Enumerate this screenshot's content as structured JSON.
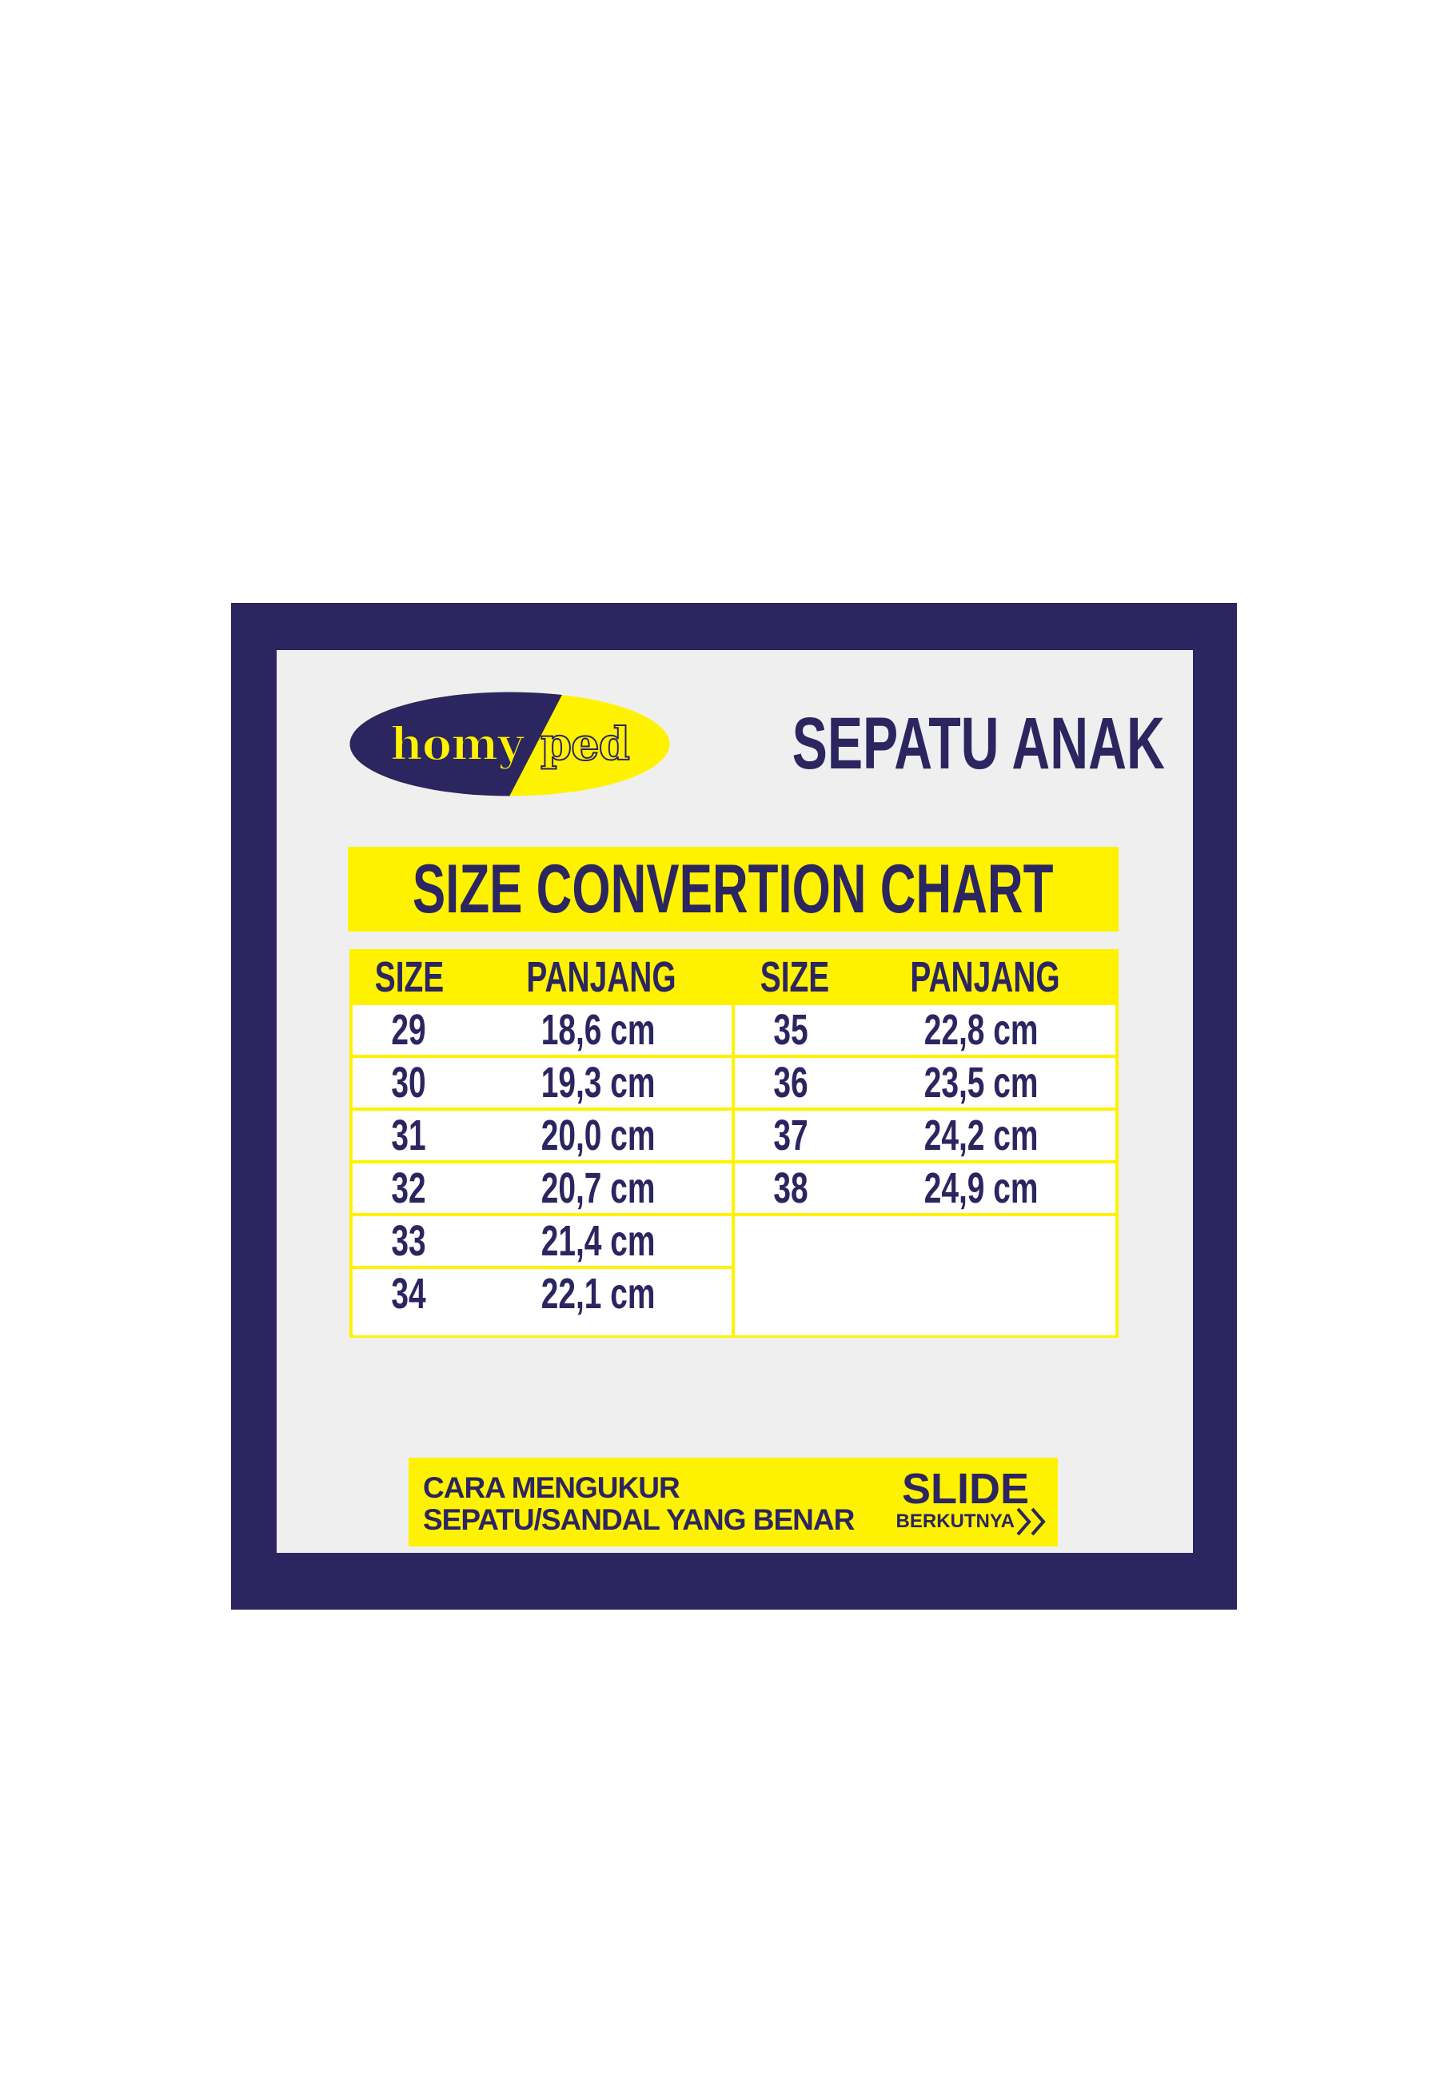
{
  "brand": {
    "logo_text_left": "homy",
    "logo_text_right": "ped"
  },
  "title": "SEPATU ANAK",
  "banner": "SIZE CONVERTION CHART",
  "table": {
    "headers": [
      "SIZE",
      "PANJANG",
      "SIZE",
      "PANJANG"
    ],
    "left": [
      {
        "size": "29",
        "length": "18,6 cm"
      },
      {
        "size": "30",
        "length": "19,3 cm"
      },
      {
        "size": "31",
        "length": "20,0 cm"
      },
      {
        "size": "32",
        "length": "20,7 cm"
      },
      {
        "size": "33",
        "length": "21,4 cm"
      },
      {
        "size": "34",
        "length": "22,1 cm"
      }
    ],
    "right": [
      {
        "size": "35",
        "length": "22,8 cm"
      },
      {
        "size": "36",
        "length": "23,5 cm"
      },
      {
        "size": "37",
        "length": "24,2 cm"
      },
      {
        "size": "38",
        "length": "24,9 cm"
      }
    ]
  },
  "footer": {
    "line1": "CARA MENGUKUR",
    "line2": "SEPATU/SANDAL YANG BENAR",
    "slide": "SLIDE",
    "next": "BERKUTNYA",
    "next_icon": "double-chevron-right-icon"
  },
  "colors": {
    "navy": "#2b2560",
    "yellow": "#fff200",
    "panel": "#efeff0"
  }
}
